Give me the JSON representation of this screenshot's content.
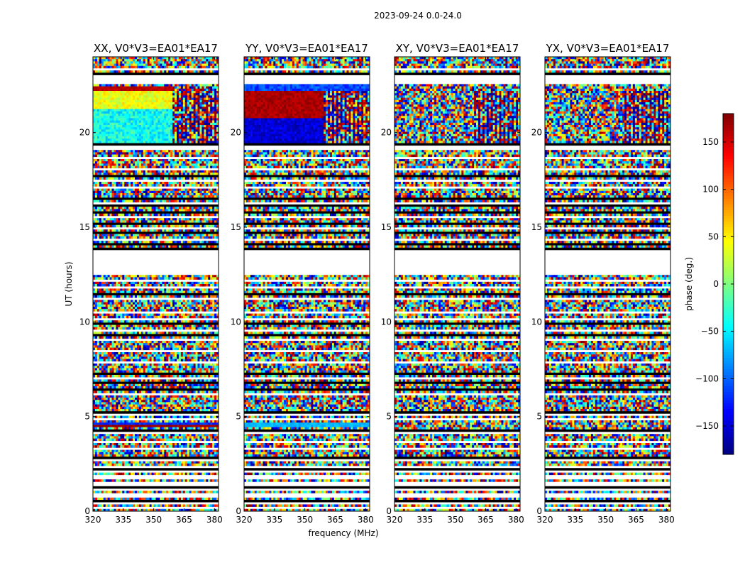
{
  "chart_data": {
    "type": "heatmap",
    "suptitle": "2023-09-24 0.0-24.0",
    "xlabel": "frequency (MHz)",
    "ylabel": "UT (hours)",
    "colorbar_label": "phase (deg.)",
    "colormap": "jet",
    "clim": [
      -180,
      180
    ],
    "colorbar_ticks": [
      -150,
      -100,
      -50,
      0,
      50,
      100,
      150
    ],
    "colorbar_tick_labels": [
      "−150",
      "−100",
      "−50",
      "0",
      "50",
      "100",
      "150"
    ],
    "xlim": [
      320,
      382
    ],
    "ylim": [
      0,
      24
    ],
    "xticks": [
      320,
      335,
      350,
      365,
      380
    ],
    "yticks": [
      0,
      5,
      10,
      15,
      20
    ],
    "grid": false,
    "panels": [
      {
        "title": "XX, V0*V3=EA01*EA17",
        "coherent_blocks": [
          {
            "t0": 19.5,
            "t1": 21.3,
            "f0": 320,
            "f1": 359,
            "base": -40,
            "spread": 60
          },
          {
            "t0": 21.3,
            "t1": 22.2,
            "f0": 320,
            "f1": 359,
            "base": 40,
            "spread": 45
          },
          {
            "t0": 22.2,
            "t1": 22.5,
            "f0": 320,
            "f1": 359,
            "base": 160,
            "spread": 20
          },
          {
            "t0": 4.4,
            "t1": 4.6,
            "f0": 320,
            "f1": 382,
            "base": 170,
            "spread": 15
          },
          {
            "t0": 4.6,
            "t1": 4.7,
            "f0": 320,
            "f1": 382,
            "base": -120,
            "spread": 20
          }
        ],
        "stripe_blocks": [
          {
            "t0": 19.5,
            "t1": 22.5,
            "f0": 359,
            "f1": 382
          }
        ]
      },
      {
        "title": "YY, V0*V3=EA01*EA17",
        "coherent_blocks": [
          {
            "t0": 19.5,
            "t1": 20.8,
            "f0": 320,
            "f1": 359,
            "base": -150,
            "spread": 40
          },
          {
            "t0": 20.8,
            "t1": 22.2,
            "f0": 320,
            "f1": 359,
            "base": 165,
            "spread": 25
          },
          {
            "t0": 22.2,
            "t1": 22.6,
            "f0": 320,
            "f1": 382,
            "base": -110,
            "spread": 40
          },
          {
            "t0": 4.5,
            "t1": 4.7,
            "f0": 320,
            "f1": 382,
            "base": -70,
            "spread": 20
          }
        ],
        "stripe_blocks": [
          {
            "t0": 19.5,
            "t1": 22.2,
            "f0": 359,
            "f1": 382
          }
        ]
      },
      {
        "title": "XY, V0*V3=EA01*EA17",
        "coherent_blocks": [],
        "stripe_blocks": [
          {
            "t0": 19.5,
            "t1": 22.2,
            "f0": 359,
            "f1": 382
          }
        ]
      },
      {
        "title": "YX, V0*V3=EA01*EA17",
        "coherent_blocks": [],
        "stripe_blocks": [
          {
            "t0": 19.5,
            "t1": 22.2,
            "f0": 359,
            "f1": 382
          }
        ]
      }
    ],
    "data_gaps": [
      {
        "t0": 12.5,
        "t1": 13.8
      },
      {
        "t0": 22.6,
        "t1": 22.9
      }
    ],
    "blank_rows": [
      0.15,
      0.4,
      0.75,
      0.95,
      1.15,
      1.35,
      1.55,
      1.8,
      2.05,
      2.35,
      2.7,
      3.25,
      3.7,
      4.1,
      4.85,
      5.05,
      6.2,
      7.05,
      7.9,
      8.45,
      9.05,
      9.55,
      10.1,
      10.55,
      11.25,
      11.8,
      12.2,
      14.3,
      14.95,
      15.55,
      16.3,
      17.15,
      17.5,
      18.1,
      18.7,
      19.2,
      22.95,
      23.35
    ],
    "dark_rows": [
      0.55,
      1.25,
      2.2,
      2.8,
      4.3,
      5.25,
      6.15,
      6.45,
      6.75,
      7.3,
      9.3,
      9.95,
      11.5,
      13.85,
      14.1,
      14.7,
      15.2,
      15.8,
      16.1,
      16.55,
      17.7,
      19.35,
      23.1
    ]
  }
}
